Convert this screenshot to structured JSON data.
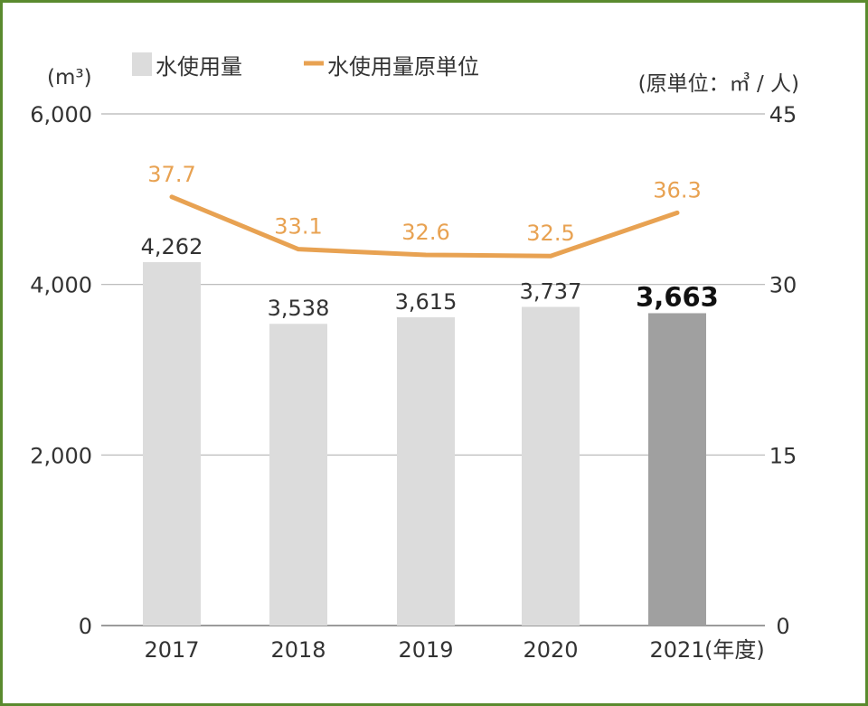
{
  "chart_data": {
    "type": "bar",
    "categories": [
      "2017",
      "2018",
      "2019",
      "2020",
      "2021"
    ],
    "x_unit_suffix": "(年度)",
    "left_axis": {
      "unit_label": "(m³)",
      "min": 0,
      "max": 6000,
      "ticks": [
        "0",
        "2,000",
        "4,000",
        "6,000"
      ],
      "tick_values": [
        0,
        2000,
        4000,
        6000
      ]
    },
    "right_axis": {
      "unit_label": "(原単位：㎥ / 人)",
      "min": 0,
      "max": 45,
      "ticks": [
        "0",
        "15",
        "30",
        "45"
      ],
      "tick_values": [
        0,
        15,
        30,
        45
      ]
    },
    "series": [
      {
        "name": "水使用量",
        "kind": "bar",
        "axis": "left",
        "values": [
          4262,
          3538,
          3615,
          3737,
          3663
        ],
        "labels": [
          "4,262",
          "3,538",
          "3,615",
          "3,737",
          "3,663"
        ],
        "color": "#dcdcdc",
        "highlight_color": "#a0a0a0",
        "highlight_index": 4
      },
      {
        "name": "水使用量原単位",
        "kind": "line",
        "axis": "right",
        "values": [
          37.7,
          33.1,
          32.6,
          32.5,
          36.3
        ],
        "labels": [
          "37.7",
          "33.1",
          "32.6",
          "32.5",
          "36.3"
        ],
        "color": "#e8a252"
      }
    ],
    "grid": true,
    "legend_position": "top-left"
  }
}
